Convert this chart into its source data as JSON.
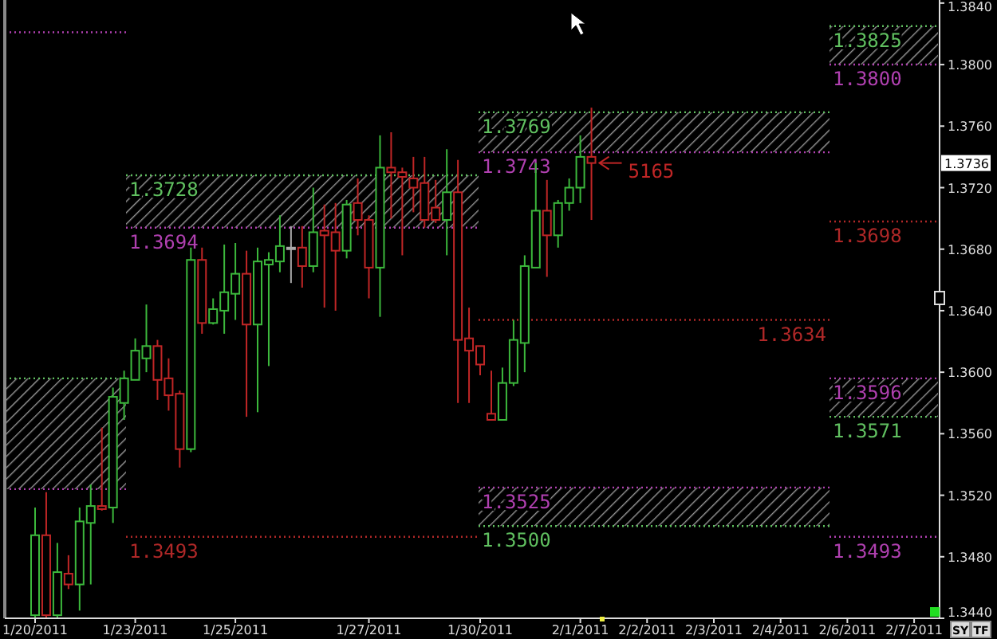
{
  "chart_data": {
    "type": "candlestick",
    "categories": [
      "1/20/2011",
      null,
      null,
      null,
      null,
      null,
      null,
      null,
      null,
      "1/23/2011",
      null,
      null,
      null,
      null,
      null,
      null,
      null,
      null,
      "1/25/2011",
      null,
      null,
      null,
      null,
      null,
      null,
      null,
      null,
      null,
      null,
      null,
      "1/27/2011",
      null,
      null,
      null,
      null,
      null,
      null,
      null,
      null,
      null,
      "1/30/2011",
      null,
      null,
      null,
      null,
      null,
      null,
      null,
      null,
      "2/1/2011",
      null,
      null,
      null,
      null,
      null,
      "2/2/2011",
      null,
      null,
      null,
      null,
      null,
      "2/3/2011",
      null,
      null,
      null,
      null,
      null,
      "2/4/2011",
      null,
      null,
      null,
      null,
      null,
      "2/6/2011",
      null,
      null,
      null,
      null,
      null,
      "2/7/2011",
      null,
      null
    ],
    "ohlc": [
      [
        1.3442,
        1.3512,
        1.344,
        1.3494
      ],
      [
        1.3494,
        1.3522,
        1.344,
        1.3442
      ],
      [
        1.3442,
        1.3489,
        1.344,
        1.347
      ],
      [
        1.3469,
        1.3481,
        1.3459,
        1.3462
      ],
      [
        1.3462,
        1.3512,
        1.3445,
        1.3503
      ],
      [
        1.3502,
        1.3527,
        1.3462,
        1.3513
      ],
      [
        1.3513,
        1.3564,
        1.351,
        1.3511
      ],
      [
        1.3512,
        1.359,
        1.3502,
        1.3584
      ],
      [
        1.358,
        1.3601,
        1.3569,
        1.3596
      ],
      [
        1.3595,
        1.3622,
        1.3595,
        1.3614
      ],
      [
        1.3609,
        1.3644,
        1.36,
        1.3617
      ],
      [
        1.3617,
        1.3621,
        1.3582,
        1.3595
      ],
      [
        1.3596,
        1.3609,
        1.3575,
        1.3585
      ],
      [
        1.3586,
        1.3588,
        1.3538,
        1.355
      ],
      [
        1.355,
        1.3681,
        1.3548,
        1.3673
      ],
      [
        1.3673,
        1.3681,
        1.3625,
        1.3632
      ],
      [
        1.3632,
        1.3648,
        1.3631,
        1.3641
      ],
      [
        1.364,
        1.3683,
        1.3625,
        1.3652
      ],
      [
        1.3651,
        1.3684,
        1.3634,
        1.3664
      ],
      [
        1.3664,
        1.3679,
        1.3571,
        1.3631
      ],
      [
        1.3631,
        1.3681,
        1.3574,
        1.3672
      ],
      [
        1.367,
        1.3678,
        1.3604,
        1.3673
      ],
      [
        1.3672,
        1.3702,
        1.3665,
        1.3682
      ],
      [
        1.3681,
        1.3695,
        1.3658,
        1.3681
      ],
      [
        1.3681,
        1.3695,
        1.3655,
        1.3669
      ],
      [
        1.3669,
        1.372,
        1.3665,
        1.3691
      ],
      [
        1.3692,
        1.3709,
        1.3642,
        1.3689
      ],
      [
        1.3691,
        1.371,
        1.364,
        1.3679
      ],
      [
        1.3679,
        1.3712,
        1.3674,
        1.3709
      ],
      [
        1.371,
        1.3726,
        1.3689,
        1.3699
      ],
      [
        1.3699,
        1.3702,
        1.3648,
        1.3668
      ],
      [
        1.3668,
        1.3754,
        1.3636,
        1.3733
      ],
      [
        1.3733,
        1.3756,
        1.37,
        1.373
      ],
      [
        1.373,
        1.3733,
        1.3676,
        1.3727
      ],
      [
        1.3726,
        1.374,
        1.3704,
        1.372
      ],
      [
        1.3723,
        1.374,
        1.3694,
        1.3699
      ],
      [
        1.3707,
        1.3725,
        1.3697,
        1.3699
      ],
      [
        1.3699,
        1.3745,
        1.3676,
        1.3717
      ],
      [
        1.3717,
        1.3738,
        1.358,
        1.3621
      ],
      [
        1.3622,
        1.3642,
        1.358,
        1.3614
      ],
      [
        1.3617,
        1.3617,
        1.3598,
        1.3605
      ],
      [
        1.3573,
        1.3601,
        1.3569,
        1.3569
      ],
      [
        1.3569,
        1.3603,
        1.3569,
        1.3593
      ],
      [
        1.3593,
        1.3634,
        1.3591,
        1.3621
      ],
      [
        1.3619,
        1.3676,
        1.36,
        1.3669
      ],
      [
        1.3668,
        1.3736,
        1.3668,
        1.3705
      ],
      [
        1.3705,
        1.3725,
        1.3662,
        1.3689
      ],
      [
        1.3689,
        1.3712,
        1.3681,
        1.371
      ],
      [
        1.371,
        1.3726,
        1.3705,
        1.372
      ],
      [
        1.372,
        1.3754,
        1.371,
        1.374
      ],
      [
        1.374,
        1.3772,
        1.3699,
        1.3736
      ],
      null,
      null,
      null,
      null,
      null,
      null,
      null,
      null,
      null,
      null,
      null,
      null,
      null,
      null,
      null,
      null,
      null,
      null,
      null,
      null,
      null,
      null,
      null,
      null,
      null,
      null,
      null,
      null,
      null,
      null,
      null
    ],
    "ylim": [
      1.344,
      1.3842
    ],
    "yticks": [
      {
        "value": 1.344,
        "label": "1.3440"
      },
      {
        "value": 1.348,
        "label": "1.3480"
      },
      {
        "value": 1.352,
        "label": "1.3520"
      },
      {
        "value": 1.356,
        "label": "1.3560"
      },
      {
        "value": 1.36,
        "label": "1.3600"
      },
      {
        "value": 1.364,
        "label": "1.3640"
      },
      {
        "value": 1.368,
        "label": "1.3680"
      },
      {
        "value": 1.372,
        "label": "1.3720"
      },
      {
        "value": 1.376,
        "label": "1.3760"
      },
      {
        "value": 1.38,
        "label": "1.3800"
      },
      {
        "value": 1.384,
        "label": "1.3840"
      }
    ],
    "bands": [
      {
        "axis": "y",
        "from": 1.3524,
        "to": 1.3596,
        "color": "#c8c8c8"
      },
      {
        "axis": "y",
        "from": 1.3694,
        "to": 1.3728,
        "color": "#c8c8c8"
      },
      {
        "axis": "y",
        "from": 1.3743,
        "to": 1.3769,
        "color": "#c8c8c8"
      },
      {
        "axis": "y",
        "from": 1.35,
        "to": 1.3525,
        "color": "#c8c8c8"
      },
      {
        "axis": "y",
        "from": 1.38,
        "to": 1.3825,
        "color": "#c8c8c8"
      },
      {
        "axis": "y",
        "from": 1.3571,
        "to": 1.3596,
        "color": "#c8c8c8"
      }
    ],
    "ref_lines": [
      {
        "axis": "y",
        "value": 1.3821,
        "color": "#b040b0",
        "line_style": "dotted"
      },
      {
        "axis": "y",
        "value": 1.3596,
        "color": "#60c060",
        "line_style": "dotted"
      },
      {
        "axis": "y",
        "value": 1.3524,
        "color": "#b040b0",
        "line_style": "dotted"
      },
      {
        "axis": "y",
        "value": 1.3728,
        "label": "1.3728",
        "color": "#60c060",
        "line_style": "dotted"
      },
      {
        "axis": "y",
        "value": 1.3694,
        "label": "1.3694",
        "color": "#b040b0",
        "line_style": "dotted"
      },
      {
        "axis": "y",
        "value": 1.3493,
        "label": "1.3493",
        "color": "#b02828",
        "line_style": "dotted"
      },
      {
        "axis": "y",
        "value": 1.3769,
        "label": "1.3769",
        "color": "#60c060",
        "line_style": "dotted"
      },
      {
        "axis": "y",
        "value": 1.3743,
        "label": "1.3743",
        "color": "#b040b0",
        "line_style": "dotted"
      },
      {
        "axis": "y",
        "value": 1.3634,
        "label": "1.3634",
        "color": "#b02828",
        "line_style": "dotted"
      },
      {
        "axis": "y",
        "value": 1.3525,
        "label": "1.3525",
        "color": "#b040b0",
        "line_style": "dotted"
      },
      {
        "axis": "y",
        "value": 1.35,
        "label": "1.3500",
        "color": "#60c060",
        "line_style": "dotted"
      },
      {
        "axis": "y",
        "value": 1.3825,
        "label": "1.3825",
        "color": "#60c060",
        "line_style": "dotted"
      },
      {
        "axis": "y",
        "value": 1.38,
        "label": "1.3800",
        "color": "#b040b0",
        "line_style": "dotted"
      },
      {
        "axis": "y",
        "value": 1.3698,
        "label": "1.3698",
        "color": "#b02828",
        "line_style": "dotted"
      },
      {
        "axis": "y",
        "value": 1.3596,
        "label": "1.3596",
        "color": "#b040b0",
        "line_style": "dotted"
      },
      {
        "axis": "y",
        "value": 1.3571,
        "label": "1.3571",
        "color": "#60c060",
        "line_style": "dotted"
      },
      {
        "axis": "y",
        "value": 1.3493,
        "label": "1.3493",
        "color": "#b040b0",
        "line_style": "dotted"
      }
    ],
    "annotations": [
      {
        "text": "1.3736",
        "y": 1.3736
      },
      "5165",
      "SY",
      "TF"
    ]
  }
}
